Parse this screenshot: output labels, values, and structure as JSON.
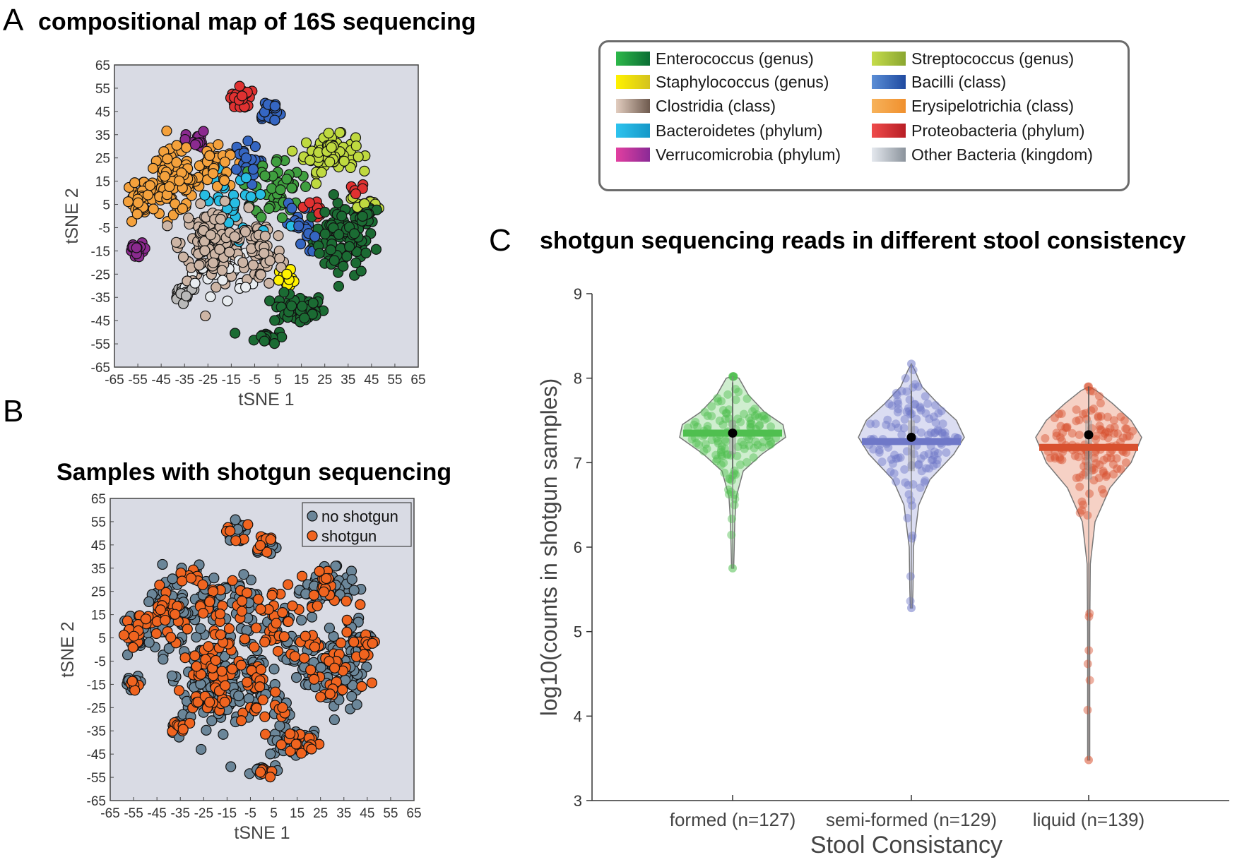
{
  "panels": {
    "a": {
      "letter": "A",
      "title": "compositional map of 16S sequencing"
    },
    "b": {
      "letter": "B",
      "title": "Samples with shotgun sequencing"
    },
    "c": {
      "letter": "C",
      "title": "shotgun sequencing reads in different stool consistency"
    }
  },
  "legend": {
    "items": [
      {
        "label": "Enterococcus (genus)",
        "color_start": "#2db84a",
        "color_end": "#0b6e34"
      },
      {
        "label": "Streptococcus (genus)",
        "color_start": "#c5dc4a",
        "color_end": "#8aa630"
      },
      {
        "label": "Staphylococcus (genus)",
        "color_start": "#fff200",
        "color_end": "#d4c21e"
      },
      {
        "label": "Bacilli (class)",
        "color_start": "#5b8ed6",
        "color_end": "#1f4aa0"
      },
      {
        "label": "Clostridia (class)",
        "color_start": "#e2cdbf",
        "color_end": "#6e5a4e"
      },
      {
        "label": "Erysipelotrichia (class)",
        "color_start": "#f7b25a",
        "color_end": "#f0902e"
      },
      {
        "label": "Bacteroidetes (phylum)",
        "color_start": "#2ec3ee",
        "color_end": "#1598c8"
      },
      {
        "label": "Proteobacteria (phylum)",
        "color_start": "#ef4b4b",
        "color_end": "#b81e25"
      },
      {
        "label": "Verrucomicrobia (phylum)",
        "color_start": "#e23fa0",
        "color_end": "#8a2a96"
      },
      {
        "label": "Other Bacteria (kingdom)",
        "color_start": "#e4e8ee",
        "color_end": "#8b939c"
      }
    ]
  },
  "chart_data": [
    {
      "id": "A",
      "type": "scatter",
      "title": "compositional map of 16S sequencing",
      "xlabel": "tSNE 1",
      "ylabel": "tSNE 2",
      "xlim": [
        -65,
        65
      ],
      "ylim": [
        -65,
        65
      ],
      "xticks": [
        -65,
        -55,
        -45,
        -35,
        -25,
        -15,
        -5,
        5,
        15,
        25,
        35,
        45,
        55,
        65
      ],
      "yticks": [
        -65,
        -55,
        -45,
        -35,
        -25,
        -15,
        -5,
        5,
        15,
        25,
        35,
        45,
        55,
        65
      ],
      "background": "#d9dbe4",
      "clusters": [
        {
          "color": "#1b6b33",
          "cx": 33,
          "cy": -10,
          "rx": 12,
          "ry": 14,
          "n": 90
        },
        {
          "color": "#1b6b33",
          "cx": 14,
          "cy": -40,
          "rx": 10,
          "ry": 6,
          "n": 55
        },
        {
          "color": "#1b6b33",
          "cx": 44,
          "cy": 2,
          "rx": 5,
          "ry": 6,
          "n": 20
        },
        {
          "color": "#1b6b33",
          "cx": 0,
          "cy": -52,
          "rx": 7,
          "ry": 2.5,
          "n": 18
        },
        {
          "color": "#bfd93f",
          "cx": 27,
          "cy": 27,
          "rx": 10,
          "ry": 7,
          "n": 80
        },
        {
          "color": "#bfd93f",
          "cx": 43,
          "cy": 4,
          "rx": 7,
          "ry": 5,
          "n": 20
        },
        {
          "color": "#f4a13c",
          "cx": -40,
          "cy": 15,
          "rx": 11,
          "ry": 12,
          "n": 100
        },
        {
          "color": "#f4a13c",
          "cx": -55,
          "cy": 5,
          "rx": 5,
          "ry": 9,
          "n": 30
        },
        {
          "color": "#f4a13c",
          "cx": -22,
          "cy": 20,
          "rx": 8,
          "ry": 8,
          "n": 40
        },
        {
          "color": "#cdb5a5",
          "cx": -22,
          "cy": -12,
          "rx": 13,
          "ry": 14,
          "n": 140
        },
        {
          "color": "#cdb5a5",
          "cx": -2,
          "cy": -15,
          "rx": 8,
          "ry": 14,
          "n": 60
        },
        {
          "color": "#b9b9b9",
          "cx": -35,
          "cy": -33,
          "rx": 5,
          "ry": 3,
          "n": 20
        },
        {
          "color": "#3f9f3f",
          "cx": 5,
          "cy": 12,
          "rx": 9,
          "ry": 12,
          "n": 50
        },
        {
          "color": "#3566c2",
          "cx": 1,
          "cy": 45,
          "rx": 5,
          "ry": 5,
          "n": 25
        },
        {
          "color": "#3566c2",
          "cx": -10,
          "cy": 22,
          "rx": 6,
          "ry": 8,
          "n": 25
        },
        {
          "color": "#3566c2",
          "cx": 15,
          "cy": -5,
          "rx": 6,
          "ry": 10,
          "n": 20
        },
        {
          "color": "#e03131",
          "cx": -11,
          "cy": 51,
          "rx": 4,
          "ry": 5,
          "n": 22
        },
        {
          "color": "#e03131",
          "cx": 20,
          "cy": 3,
          "rx": 4,
          "ry": 4,
          "n": 10
        },
        {
          "color": "#e03131",
          "cx": 39,
          "cy": 12,
          "rx": 3,
          "ry": 2,
          "n": 6
        },
        {
          "color": "#8b2a8f",
          "cx": -30,
          "cy": 32,
          "rx": 4,
          "ry": 4,
          "n": 18
        },
        {
          "color": "#8b2a8f",
          "cx": -55,
          "cy": -15,
          "rx": 4,
          "ry": 3,
          "n": 18
        },
        {
          "color": "#fff200",
          "cx": 9,
          "cy": -28,
          "rx": 3,
          "ry": 5,
          "n": 14
        },
        {
          "color": "#27bde3",
          "cx": -12,
          "cy": 5,
          "rx": 18,
          "ry": 18,
          "n": 30
        },
        {
          "color": "#e8ecf0",
          "cx": -20,
          "cy": -25,
          "rx": 12,
          "ry": 8,
          "n": 25
        }
      ]
    },
    {
      "id": "B",
      "type": "scatter",
      "title": "Samples with shotgun sequencing",
      "xlabel": "tSNE 1",
      "ylabel": "tSNE 2",
      "xlim": [
        -65,
        65
      ],
      "ylim": [
        -65,
        65
      ],
      "xticks": [
        -65,
        -55,
        -45,
        -35,
        -25,
        -15,
        -5,
        5,
        15,
        25,
        35,
        45,
        55,
        65
      ],
      "yticks": [
        -65,
        -55,
        -45,
        -35,
        -25,
        -15,
        -5,
        5,
        15,
        25,
        35,
        45,
        55,
        65
      ],
      "background": "#d9dbe4",
      "legend_placement": "top-right",
      "series": [
        {
          "name": "no shotgun",
          "color": "#6b8699"
        },
        {
          "name": "shotgun",
          "color": "#f0641f"
        }
      ],
      "shotgun_fraction": 0.35
    },
    {
      "id": "C",
      "type": "violin",
      "title": "shotgun sequencing reads in different stool consistency",
      "xlabel": "Stool Consistancy",
      "ylabel": "log10(counts in shotgun samples)",
      "ylim": [
        3,
        9
      ],
      "yticks": [
        3,
        4,
        5,
        6,
        7,
        8,
        9
      ],
      "categories": [
        "formed (n=127)",
        "semi-formed (n=129)",
        "liquid (n=139)"
      ],
      "groups": [
        {
          "name": "formed (n=127)",
          "n": 127,
          "color": "#4fbf4f",
          "fill": "#bfe8bf",
          "median": 7.35,
          "mean": 7.35,
          "min": 5.75,
          "max": 8.02,
          "q1": 7.1,
          "q3": 7.5,
          "whisker_low": 6.93,
          "whisker_high": 7.95,
          "density": [
            [
              5.75,
              0.02
            ],
            [
              6.0,
              0.03
            ],
            [
              6.3,
              0.04
            ],
            [
              6.6,
              0.07
            ],
            [
              6.9,
              0.2
            ],
            [
              7.1,
              0.55
            ],
            [
              7.3,
              1.0
            ],
            [
              7.45,
              0.95
            ],
            [
              7.6,
              0.6
            ],
            [
              7.8,
              0.3
            ],
            [
              8.0,
              0.12
            ],
            [
              8.02,
              0.0
            ]
          ]
        },
        {
          "name": "semi-formed (n=129)",
          "n": 129,
          "color": "#6f78c8",
          "fill": "#cfd2ee",
          "median": 7.25,
          "mean": 7.3,
          "min": 5.28,
          "max": 8.17,
          "q1": 6.9,
          "q3": 7.5,
          "whisker_low": 6.9,
          "whisker_high": 7.85,
          "density": [
            [
              5.28,
              0.02
            ],
            [
              5.5,
              0.03
            ],
            [
              6.0,
              0.04
            ],
            [
              6.5,
              0.14
            ],
            [
              6.8,
              0.35
            ],
            [
              7.1,
              0.8
            ],
            [
              7.3,
              1.0
            ],
            [
              7.5,
              0.85
            ],
            [
              7.7,
              0.5
            ],
            [
              7.9,
              0.2
            ],
            [
              8.1,
              0.06
            ],
            [
              8.17,
              0.0
            ]
          ]
        },
        {
          "name": "liquid (n=139)",
          "n": 139,
          "color": "#d8502e",
          "fill": "#f3c1b2",
          "median": 7.18,
          "mean": 7.33,
          "min": 3.48,
          "max": 7.9,
          "q1": 6.8,
          "q3": 7.5,
          "whisker_low": 6.5,
          "whisker_high": 7.9,
          "density": [
            [
              3.48,
              0.02
            ],
            [
              4.0,
              0.02
            ],
            [
              5.0,
              0.02
            ],
            [
              5.8,
              0.03
            ],
            [
              6.3,
              0.12
            ],
            [
              6.7,
              0.4
            ],
            [
              7.0,
              0.8
            ],
            [
              7.3,
              1.0
            ],
            [
              7.5,
              0.8
            ],
            [
              7.7,
              0.45
            ],
            [
              7.85,
              0.15
            ],
            [
              7.9,
              0.0
            ]
          ]
        }
      ]
    }
  ]
}
